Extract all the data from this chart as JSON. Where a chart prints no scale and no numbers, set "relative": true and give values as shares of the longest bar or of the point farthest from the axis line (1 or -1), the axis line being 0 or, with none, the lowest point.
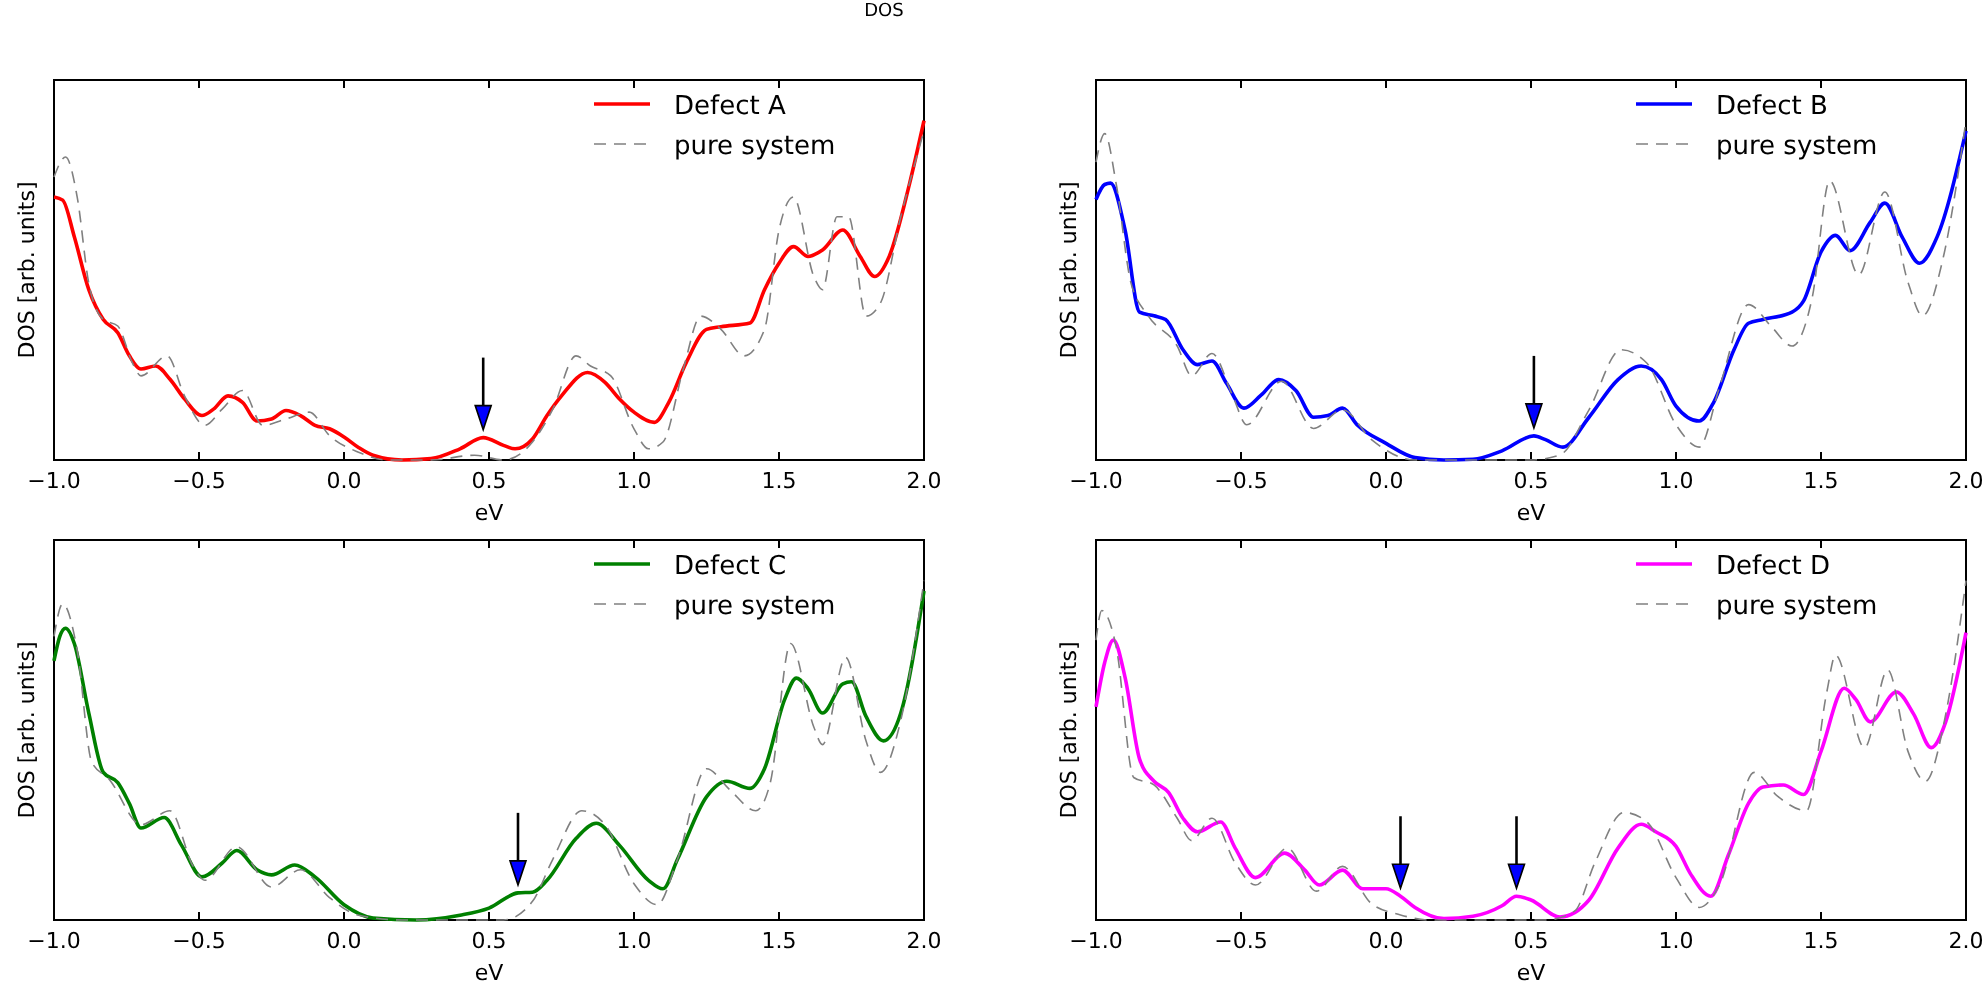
{
  "chart_data": [
    {
      "type": "line",
      "title": "DOS",
      "xlabel": "eV",
      "ylabel": "DOS [arb. units]",
      "relative": true,
      "legend": "top right",
      "xlim": [
        -1,
        2
      ],
      "xticks": [
        {
          "value": -1,
          "label": "−1.0"
        },
        {
          "value": -0.5,
          "label": "−0.5"
        },
        {
          "value": 0,
          "label": "0.0"
        },
        {
          "value": 0.5,
          "label": "0.5"
        },
        {
          "value": 1,
          "label": "1.0"
        },
        {
          "value": 1.5,
          "label": "1.5"
        },
        {
          "value": 2,
          "label": "2.0"
        }
      ],
      "series": [
        {
          "name": "Defect A",
          "color": "#ff0000",
          "line_style": "solid",
          "x": [
            -1.0,
            -0.97,
            -0.93,
            -0.88,
            -0.83,
            -0.78,
            -0.74,
            -0.7,
            -0.65,
            -0.6,
            -0.55,
            -0.49,
            -0.45,
            -0.4,
            -0.35,
            -0.3,
            -0.25,
            -0.2,
            -0.15,
            -0.1,
            -0.05,
            0.0,
            0.05,
            0.1,
            0.2,
            0.3,
            0.4,
            0.48,
            0.55,
            0.59,
            0.65,
            0.7,
            0.75,
            0.84,
            0.9,
            0.95,
            1.0,
            1.07,
            1.12,
            1.18,
            1.25,
            1.3,
            1.4,
            1.45,
            1.5,
            1.55,
            1.6,
            1.65,
            1.72,
            1.78,
            1.83,
            1.88,
            1.95,
            2.0
          ],
          "values": [
            0.775,
            0.766,
            0.658,
            0.502,
            0.414,
            0.375,
            0.307,
            0.268,
            0.277,
            0.238,
            0.18,
            0.131,
            0.15,
            0.189,
            0.17,
            0.115,
            0.121,
            0.146,
            0.131,
            0.102,
            0.092,
            0.068,
            0.037,
            0.014,
            0,
            0.004,
            0.033,
            0.066,
            0.043,
            0.033,
            0.062,
            0.131,
            0.189,
            0.258,
            0.229,
            0.18,
            0.141,
            0.111,
            0.17,
            0.287,
            0.385,
            0.393,
            0.404,
            0.502,
            0.58,
            0.629,
            0.6,
            0.619,
            0.678,
            0.6,
            0.541,
            0.6,
            0.814,
            1.0
          ]
        },
        {
          "name": "pure system",
          "color": "#808080",
          "line_style": "dashed",
          "x": [
            -1.0,
            -0.96,
            -0.92,
            -0.88,
            -0.83,
            -0.78,
            -0.73,
            -0.7,
            -0.61,
            -0.55,
            -0.48,
            -0.42,
            -0.35,
            -0.28,
            -0.2,
            -0.12,
            -0.05,
            0.05,
            0.15,
            0.3,
            0.45,
            0.55,
            0.65,
            0.72,
            0.8,
            0.85,
            0.92,
            1.0,
            1.05,
            1.1,
            1.17,
            1.23,
            1.3,
            1.38,
            1.45,
            1.5,
            1.55,
            1.62,
            1.65,
            1.7,
            1.74,
            1.8,
            1.85,
            1.92,
            2.0
          ],
          "values": [
            0.834,
            0.893,
            0.775,
            0.521,
            0.414,
            0.395,
            0.287,
            0.248,
            0.307,
            0.189,
            0.102,
            0.15,
            0.205,
            0.102,
            0.121,
            0.141,
            0.072,
            0.023,
            0,
            0,
            0.014,
            0,
            0.053,
            0.15,
            0.307,
            0.277,
            0.248,
            0.092,
            0.033,
            0.053,
            0.268,
            0.424,
            0.385,
            0.307,
            0.385,
            0.678,
            0.775,
            0.541,
            0.502,
            0.717,
            0.717,
            0.424,
            0.463,
            0.717,
            0.971
          ]
        }
      ]
    },
    {
      "type": "line",
      "xlabel": "eV",
      "ylabel": "DOS [arb. units]",
      "relative": true,
      "legend": "top right",
      "xlim": [
        -1,
        2
      ],
      "xticks": [
        {
          "value": -1,
          "label": "−1.0"
        },
        {
          "value": -0.5,
          "label": "−0.5"
        },
        {
          "value": 0,
          "label": "0.0"
        },
        {
          "value": 0.5,
          "label": "0.5"
        },
        {
          "value": 1,
          "label": "1.0"
        },
        {
          "value": 1.5,
          "label": "1.5"
        },
        {
          "value": 2,
          "label": "2.0"
        }
      ],
      "series": [
        {
          "name": "Defect B",
          "color": "#0000ff",
          "line_style": "solid",
          "x": [
            -1.0,
            -0.97,
            -0.95,
            -0.9,
            -0.85,
            -0.8,
            -0.76,
            -0.7,
            -0.65,
            -0.6,
            -0.55,
            -0.49,
            -0.43,
            -0.37,
            -0.31,
            -0.25,
            -0.2,
            -0.15,
            -0.1,
            0.0,
            0.1,
            0.2,
            0.3,
            0.4,
            0.51,
            0.55,
            0.61,
            0.7,
            0.8,
            0.88,
            0.95,
            1.0,
            1.08,
            1.13,
            1.2,
            1.25,
            1.3,
            1.4,
            1.44,
            1.5,
            1.55,
            1.6,
            1.67,
            1.72,
            1.78,
            1.84,
            1.9,
            2.0
          ],
          "values": [
            0.768,
            0.812,
            0.816,
            0.679,
            0.436,
            0.425,
            0.414,
            0.325,
            0.281,
            0.292,
            0.226,
            0.153,
            0.192,
            0.237,
            0.204,
            0.126,
            0.131,
            0.153,
            0.104,
            0.049,
            0.007,
            0,
            0.002,
            0.027,
            0.071,
            0.06,
            0.038,
            0.126,
            0.237,
            0.277,
            0.237,
            0.159,
            0.115,
            0.17,
            0.325,
            0.403,
            0.414,
            0.436,
            0.469,
            0.613,
            0.662,
            0.617,
            0.701,
            0.757,
            0.657,
            0.58,
            0.657,
            0.97
          ]
        },
        {
          "name": "pure system",
          "color": "#808080",
          "line_style": "dashed",
          "x": [
            -1.0,
            -0.97,
            -0.93,
            -0.88,
            -0.82,
            -0.72,
            -0.67,
            -0.6,
            -0.53,
            -0.48,
            -0.36,
            -0.25,
            -0.15,
            -0.05,
            0.1,
            0.5,
            0.6,
            0.7,
            0.81,
            0.9,
            1.0,
            1.08,
            1.15,
            1.25,
            1.33,
            1.4,
            1.47,
            1.53,
            1.63,
            1.72,
            1.8,
            1.85,
            1.92,
            2.0
          ],
          "values": [
            0.878,
            0.962,
            0.812,
            0.524,
            0.425,
            0.336,
            0.248,
            0.314,
            0.192,
            0.104,
            0.232,
            0.093,
            0.148,
            0.06,
            0,
            0,
            0.015,
            0.148,
            0.325,
            0.285,
            0.104,
            0.038,
            0.215,
            0.458,
            0.392,
            0.336,
            0.48,
            0.823,
            0.546,
            0.79,
            0.524,
            0.425,
            0.591,
            1.0
          ]
        }
      ]
    },
    {
      "type": "line",
      "xlabel": "eV",
      "ylabel": "DOS [arb. units]",
      "relative": true,
      "legend": "top right",
      "xlim": [
        -1,
        2
      ],
      "xticks": [
        {
          "value": -1,
          "label": "−1.0"
        },
        {
          "value": -0.5,
          "label": "−0.5"
        },
        {
          "value": 0,
          "label": "0.0"
        },
        {
          "value": 0.5,
          "label": "0.5"
        },
        {
          "value": 1,
          "label": "1.0"
        },
        {
          "value": 1.5,
          "label": "1.5"
        },
        {
          "value": 2,
          "label": "2.0"
        }
      ],
      "series": [
        {
          "name": "Defect C",
          "color": "#008000",
          "line_style": "solid",
          "x": [
            -1.0,
            -0.98,
            -0.96,
            -0.93,
            -0.88,
            -0.83,
            -0.78,
            -0.74,
            -0.7,
            -0.62,
            -0.56,
            -0.49,
            -0.42,
            -0.37,
            -0.3,
            -0.25,
            -0.17,
            -0.1,
            0.0,
            0.1,
            0.25,
            0.4,
            0.5,
            0.6,
            0.65,
            0.7,
            0.8,
            0.87,
            0.95,
            1.05,
            1.1,
            1.15,
            1.25,
            1.32,
            1.4,
            1.45,
            1.52,
            1.56,
            1.6,
            1.65,
            1.72,
            1.75,
            1.8,
            1.86,
            1.92,
            2.0
          ],
          "values": [
            0.764,
            0.836,
            0.86,
            0.815,
            0.61,
            0.435,
            0.405,
            0.343,
            0.271,
            0.302,
            0.22,
            0.127,
            0.168,
            0.205,
            0.148,
            0.133,
            0.162,
            0.127,
            0.045,
            0.006,
            0,
            0.014,
            0.035,
            0.08,
            0.082,
            0.117,
            0.24,
            0.285,
            0.22,
            0.117,
            0.092,
            0.179,
            0.363,
            0.409,
            0.388,
            0.446,
            0.651,
            0.713,
            0.682,
            0.61,
            0.696,
            0.702,
            0.6,
            0.528,
            0.61,
            0.97
          ]
        },
        {
          "name": "pure system",
          "color": "#808080",
          "line_style": "dashed",
          "x": [
            -1.0,
            -0.97,
            -0.92,
            -0.87,
            -0.81,
            -0.7,
            -0.6,
            -0.52,
            -0.48,
            -0.37,
            -0.25,
            -0.15,
            -0.05,
            0.05,
            0.2,
            0.55,
            0.65,
            0.72,
            0.82,
            0.9,
            1.0,
            1.08,
            1.15,
            1.25,
            1.33,
            1.42,
            1.47,
            1.54,
            1.62,
            1.65,
            1.73,
            1.8,
            1.85,
            1.92,
            2.0
          ],
          "values": [
            0.836,
            0.932,
            0.795,
            0.466,
            0.415,
            0.281,
            0.322,
            0.158,
            0.117,
            0.216,
            0.097,
            0.148,
            0.066,
            0.014,
            0,
            0,
            0.055,
            0.179,
            0.322,
            0.281,
            0.107,
            0.045,
            0.179,
            0.446,
            0.384,
            0.322,
            0.405,
            0.815,
            0.569,
            0.517,
            0.774,
            0.528,
            0.435,
            0.589,
            1.0
          ]
        }
      ]
    },
    {
      "type": "line",
      "xlabel": "eV",
      "ylabel": "DOS [arb. units]",
      "relative": true,
      "legend": "top right",
      "xlim": [
        -1,
        2
      ],
      "xticks": [
        {
          "value": -1,
          "label": "−1.0"
        },
        {
          "value": -0.5,
          "label": "−0.5"
        },
        {
          "value": 0,
          "label": "0.0"
        },
        {
          "value": 0.5,
          "label": "0.5"
        },
        {
          "value": 1,
          "label": "1.0"
        },
        {
          "value": 1.5,
          "label": "1.5"
        },
        {
          "value": 2,
          "label": "2.0"
        }
      ],
      "series": [
        {
          "name": "Defect D",
          "color": "#ff00ff",
          "line_style": "solid",
          "x": [
            -1.0,
            -0.97,
            -0.94,
            -0.9,
            -0.85,
            -0.8,
            -0.75,
            -0.7,
            -0.65,
            -0.57,
            -0.52,
            -0.45,
            -0.35,
            -0.28,
            -0.23,
            -0.15,
            -0.08,
            0.0,
            0.05,
            0.1,
            0.2,
            0.3,
            0.4,
            0.45,
            0.5,
            0.6,
            0.7,
            0.8,
            0.88,
            0.93,
            1.0,
            1.05,
            1.12,
            1.18,
            1.25,
            1.3,
            1.37,
            1.44,
            1.5,
            1.58,
            1.62,
            1.67,
            1.76,
            1.82,
            1.88,
            1.93,
            2.0
          ],
          "values": [
            0.628,
            0.759,
            0.825,
            0.716,
            0.475,
            0.409,
            0.376,
            0.3,
            0.26,
            0.289,
            0.212,
            0.125,
            0.197,
            0.147,
            0.103,
            0.147,
            0.092,
            0.092,
            0.07,
            0.037,
            0.004,
            0.011,
            0.042,
            0.07,
            0.059,
            0.009,
            0.059,
            0.212,
            0.282,
            0.26,
            0.217,
            0.136,
            0.07,
            0.19,
            0.344,
            0.392,
            0.398,
            0.37,
            0.497,
            0.683,
            0.65,
            0.584,
            0.672,
            0.606,
            0.508,
            0.584,
            0.847
          ]
        },
        {
          "name": "pure system",
          "color": "#808080",
          "line_style": "dashed",
          "x": [
            -1.0,
            -0.98,
            -0.93,
            -0.87,
            -0.8,
            -0.72,
            -0.67,
            -0.6,
            -0.52,
            -0.45,
            -0.34,
            -0.24,
            -0.15,
            -0.05,
            0.05,
            0.15,
            0.55,
            0.65,
            0.72,
            0.82,
            0.9,
            1.0,
            1.08,
            1.15,
            1.27,
            1.35,
            1.45,
            1.52,
            1.55,
            1.65,
            1.73,
            1.8,
            1.86,
            1.93,
            2.0
          ],
          "values": [
            0.825,
            0.912,
            0.803,
            0.42,
            0.398,
            0.3,
            0.234,
            0.3,
            0.168,
            0.103,
            0.212,
            0.085,
            0.158,
            0.048,
            0.015,
            0,
            0,
            0.026,
            0.168,
            0.317,
            0.289,
            0.125,
            0.037,
            0.103,
            0.435,
            0.365,
            0.322,
            0.672,
            0.781,
            0.508,
            0.737,
            0.497,
            0.409,
            0.606,
            1.0
          ]
        }
      ]
    }
  ]
}
